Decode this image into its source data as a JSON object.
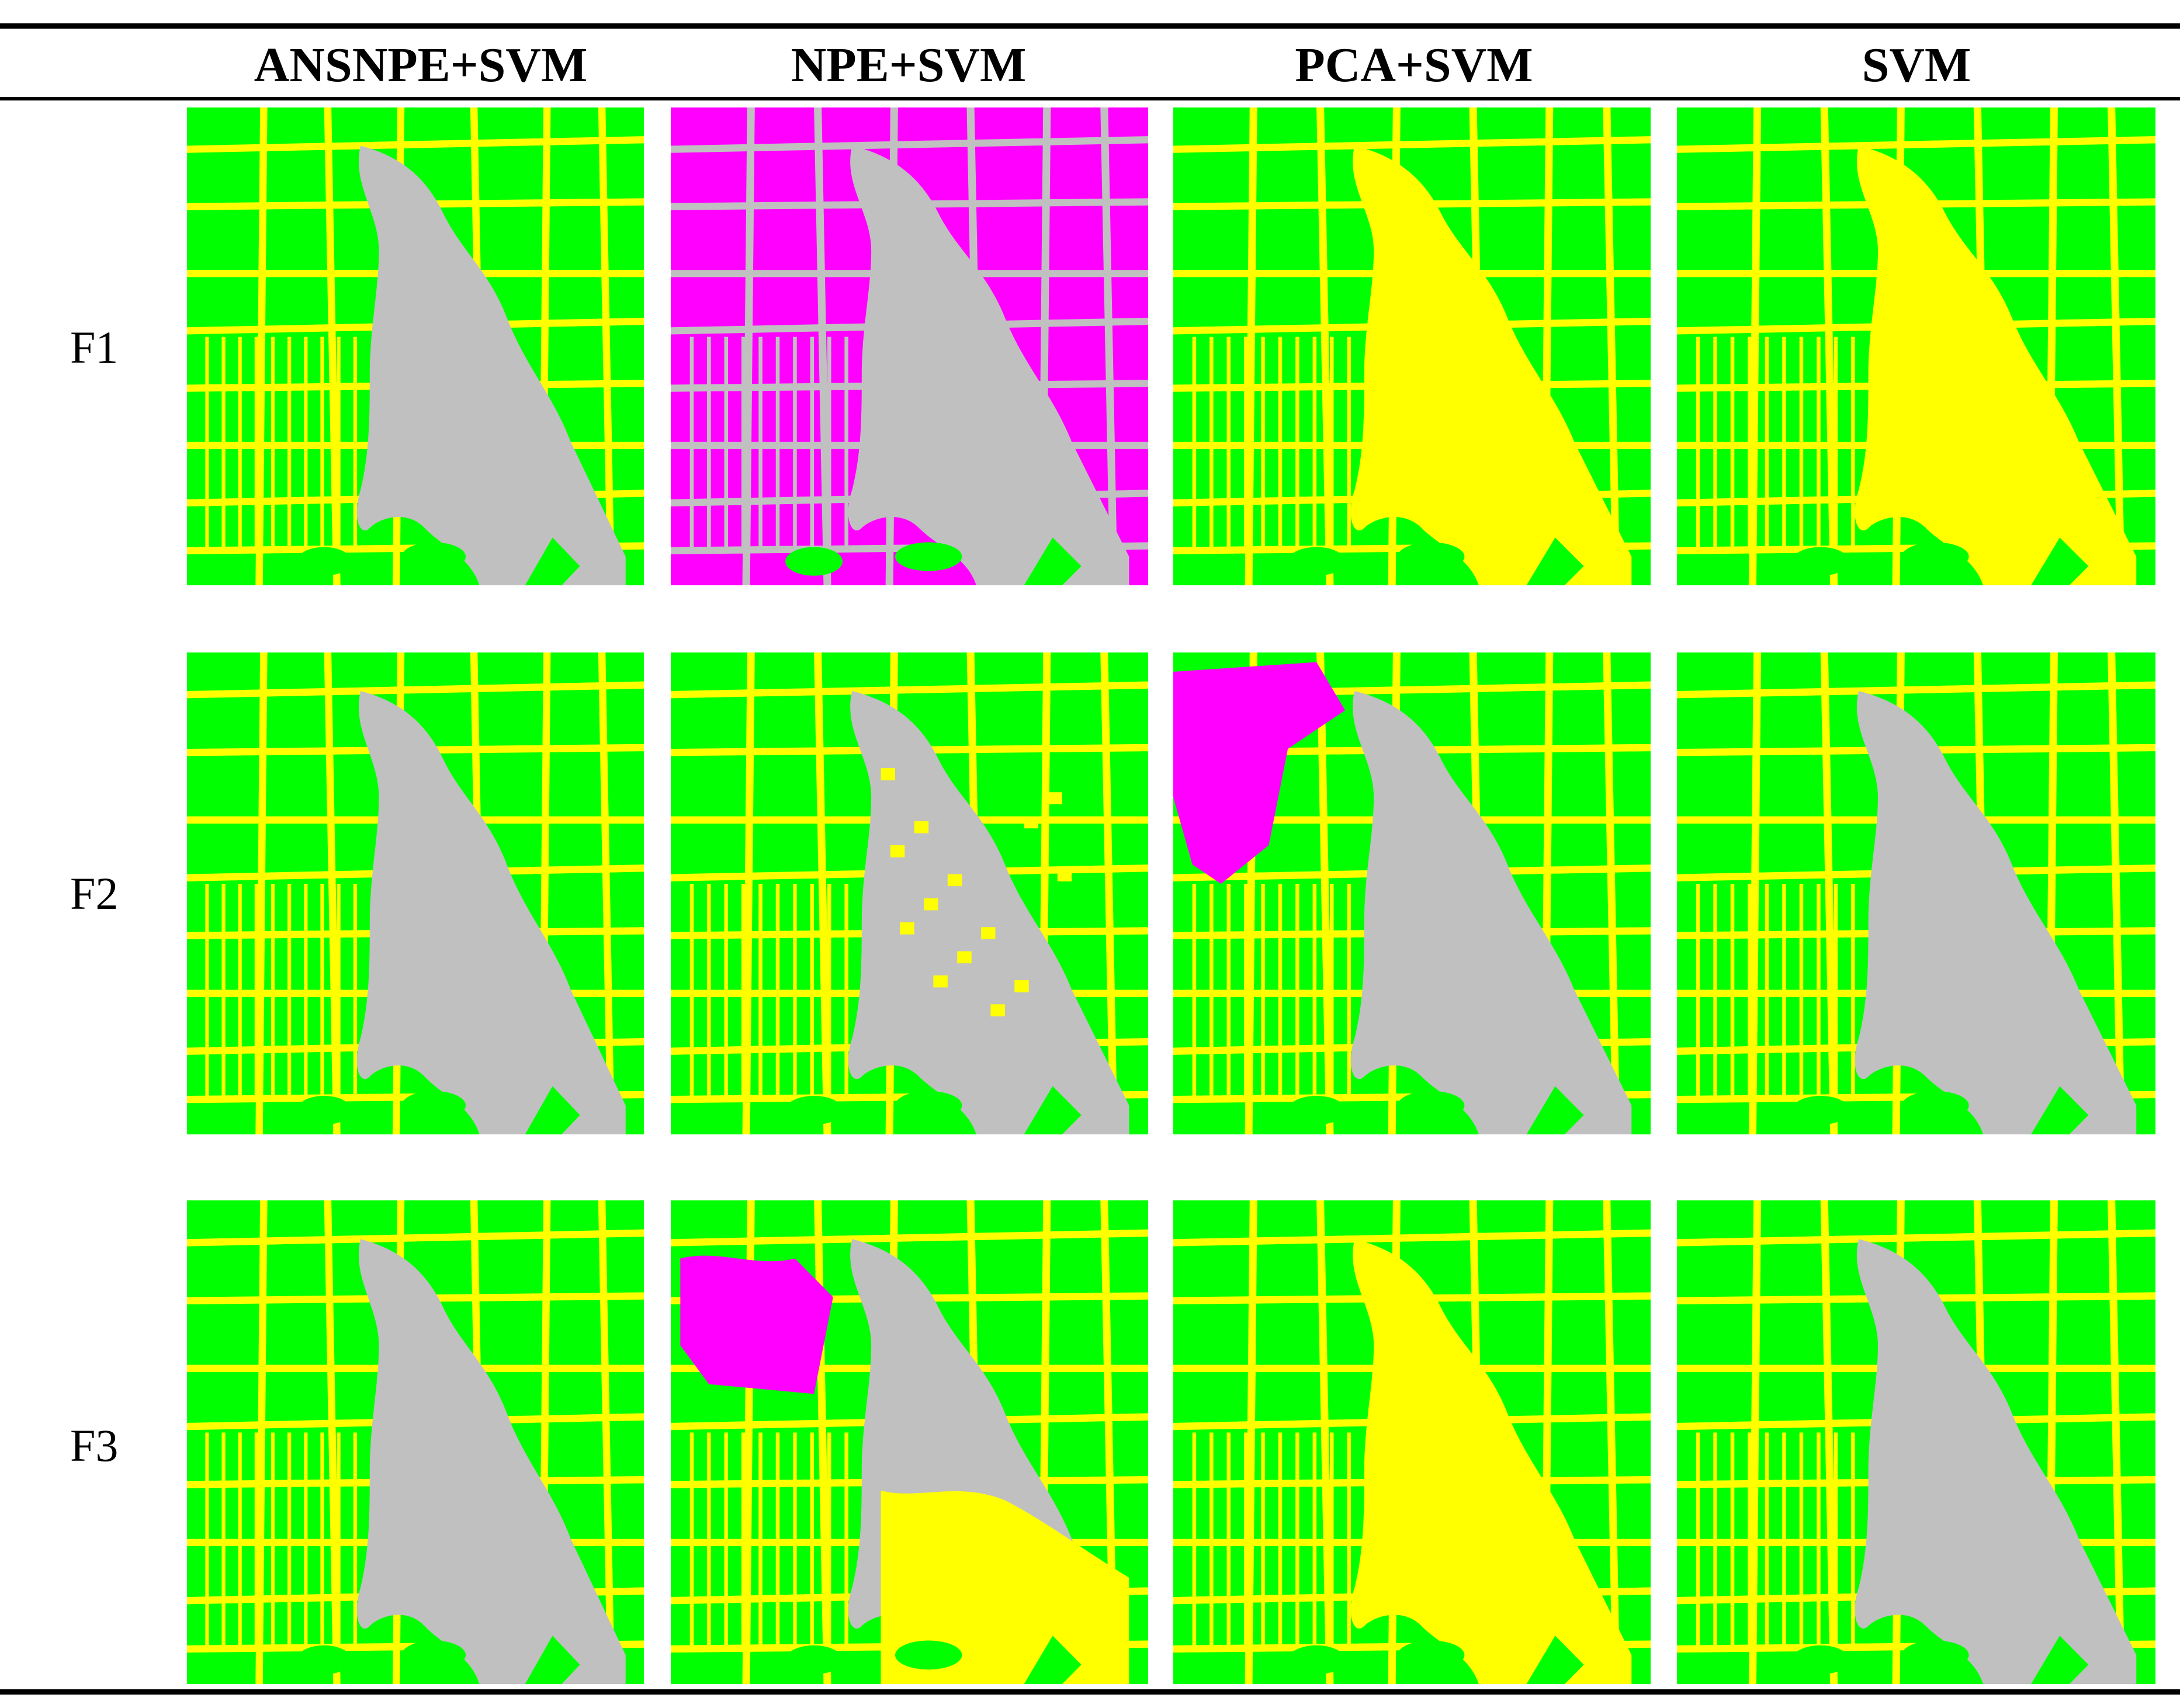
{
  "table": {
    "columns": [
      {
        "label": "ANSNPE+SVM"
      },
      {
        "label": "NPE+SVM"
      },
      {
        "label": "PCA+SVM"
      },
      {
        "label": "SVM"
      }
    ],
    "rows": [
      {
        "label": "F1"
      },
      {
        "label": "F2"
      },
      {
        "label": "F3"
      }
    ]
  },
  "colors": {
    "field": "#00ff00",
    "road": "#ffff00",
    "water": "#c0c0c0",
    "other": "#ff00ff"
  },
  "maps": [
    [
      "water",
      "water-magenta",
      "yellow",
      "yellow"
    ],
    [
      "water",
      "water-speckled",
      "water-magenta-nw",
      "water"
    ],
    [
      "water",
      "water-yellow-south",
      "yellow",
      "water"
    ]
  ]
}
